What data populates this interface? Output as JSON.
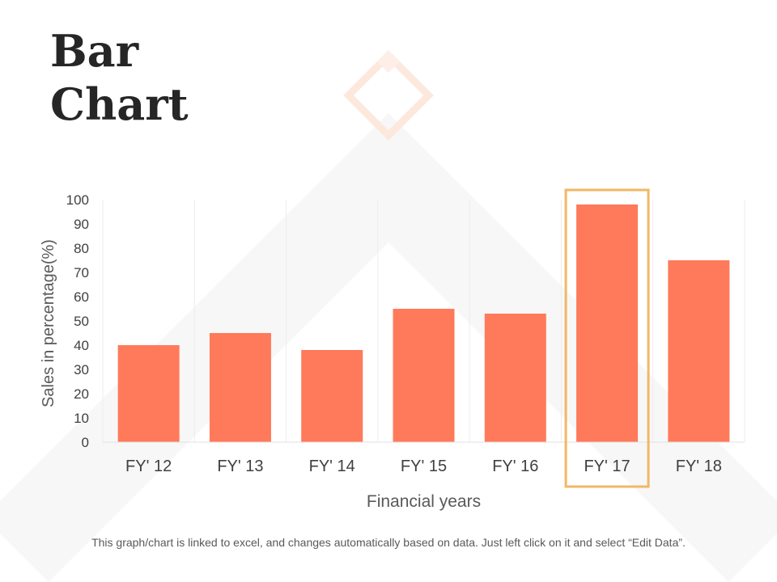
{
  "title_lines": [
    "Bar",
    "Chart"
  ],
  "footnote": "This graph/chart is linked to excel, and changes automatically based on data. Just left click on it and select “Edit Data”.",
  "colors": {
    "bar": "#FF7A5A",
    "highlight_frame": "#F2B766",
    "text": "#404040",
    "decor": "#F4F4F4",
    "decor_diamond": "#FDE8DE"
  },
  "chart_data": {
    "type": "bar",
    "categories": [
      "FY' 12",
      "FY' 13",
      "FY' 14",
      "FY' 15",
      "FY' 16",
      "FY' 17",
      "FY' 18"
    ],
    "values": [
      40,
      45,
      38,
      55,
      53,
      98,
      75
    ],
    "xlabel": "Financial years",
    "ylabel": "Sales in percentage(%)",
    "ylim": [
      0,
      100
    ],
    "yticks": [
      0,
      10,
      20,
      30,
      40,
      50,
      60,
      70,
      80,
      90,
      100
    ],
    "highlighted_category": "FY' 17",
    "grid": "vertical",
    "legend": "none"
  }
}
